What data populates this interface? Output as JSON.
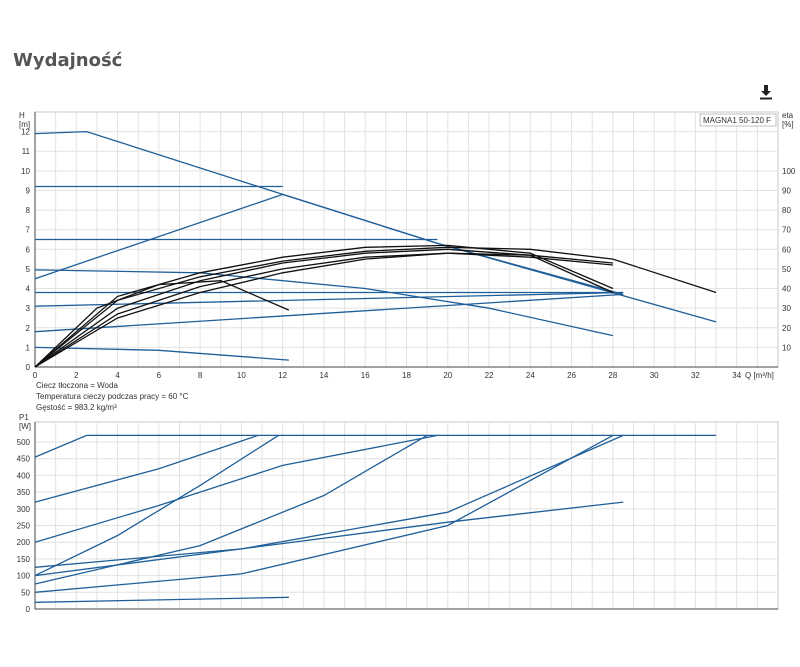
{
  "page": {
    "title": "Wydajność",
    "download_icon": "download-icon"
  },
  "chart_data": [
    {
      "type": "line",
      "model_label": "MAGNA1 50-120 F",
      "y_axis_label": [
        "H",
        "[m]"
      ],
      "y2_axis_label": [
        "eta",
        "[%]"
      ],
      "x_axis_label": "Q [m³/h]",
      "xlim": [
        0,
        36
      ],
      "ylim": [
        0,
        13
      ],
      "y2lim": [
        0,
        130
      ],
      "x_ticks": [
        0,
        2,
        4,
        6,
        8,
        10,
        12,
        14,
        16,
        18,
        20,
        22,
        24,
        26,
        28,
        30,
        32,
        34
      ],
      "y_ticks": [
        0,
        1,
        2,
        3,
        4,
        5,
        6,
        7,
        8,
        9,
        10,
        11,
        12
      ],
      "y2_ticks": [
        10,
        20,
        30,
        40,
        50,
        60,
        70,
        80,
        90,
        100
      ],
      "grid": true,
      "notes": [
        "Ciecz tłoczona = Woda",
        "Temperatura cieczy podczas pracy = 60 °C",
        "Gęstość = 983.2 kg/m³"
      ],
      "series": [
        {
          "color": "#1f5f99",
          "x": [
            0,
            2.5,
            12,
            19.5,
            28.5
          ],
          "y": [
            11.9,
            12.0,
            8.8,
            6.3,
            3.7
          ]
        },
        {
          "color": "#1f5f99",
          "x": [
            0,
            12
          ],
          "y": [
            9.2,
            9.2
          ]
        },
        {
          "color": "#1f5f99",
          "x": [
            0,
            12
          ],
          "y": [
            4.5,
            8.8
          ]
        },
        {
          "color": "#1f5f99",
          "x": [
            12,
            19.5,
            33
          ],
          "y": [
            8.8,
            6.3,
            2.3
          ]
        },
        {
          "color": "#1f5f99",
          "x": [
            0,
            19.5
          ],
          "y": [
            6.5,
            6.5
          ]
        },
        {
          "color": "#1f5f99",
          "x": [
            0,
            8,
            16,
            22,
            28
          ],
          "y": [
            4.95,
            4.8,
            4.0,
            3.0,
            1.6
          ]
        },
        {
          "color": "#1f5f99",
          "x": [
            0,
            28.5
          ],
          "y": [
            3.8,
            3.8
          ]
        },
        {
          "color": "#1f5f99",
          "x": [
            0,
            28.5
          ],
          "y": [
            3.1,
            3.8
          ]
        },
        {
          "color": "#1f5f99",
          "x": [
            0,
            28.5
          ],
          "y": [
            1.8,
            3.7
          ]
        },
        {
          "color": "#1f5f99",
          "x": [
            0,
            6,
            12.3
          ],
          "y": [
            1.0,
            0.85,
            0.35
          ]
        },
        {
          "color": "#111111",
          "x": [
            0,
            4,
            8,
            12,
            16,
            20,
            24,
            28,
            33
          ],
          "y": [
            0,
            34,
            46,
            54,
            59,
            61,
            60,
            55,
            38
          ]
        },
        {
          "color": "#111111",
          "x": [
            0,
            4,
            8,
            12,
            16,
            20,
            24,
            28
          ],
          "y": [
            0,
            36,
            48,
            56,
            61,
            62,
            58,
            40
          ]
        },
        {
          "color": "#111111",
          "x": [
            0,
            4,
            8,
            12,
            16,
            20,
            24,
            28
          ],
          "y": [
            0,
            30,
            44,
            53,
            58,
            60,
            57,
            38
          ]
        },
        {
          "color": "#111111",
          "x": [
            0,
            4,
            8,
            12,
            16,
            20,
            24,
            28
          ],
          "y": [
            0,
            27,
            41,
            50,
            56,
            58,
            56,
            52
          ]
        },
        {
          "color": "#111111",
          "x": [
            0,
            4,
            8,
            12,
            16,
            20,
            24,
            28
          ],
          "y": [
            0,
            25,
            38,
            48,
            55,
            58,
            57,
            53
          ]
        },
        {
          "color": "#111111",
          "x": [
            0,
            3,
            6,
            9,
            12.3
          ],
          "y": [
            0,
            30,
            42,
            44,
            29
          ]
        }
      ]
    },
    {
      "type": "line",
      "y_axis_label": [
        "P1",
        "[W]"
      ],
      "xlim": [
        0,
        36
      ],
      "ylim": [
        0,
        560
      ],
      "y_ticks": [
        0,
        50,
        100,
        150,
        200,
        250,
        300,
        350,
        400,
        450,
        500
      ],
      "grid": true,
      "series": [
        {
          "color": "#1f5f99",
          "x": [
            0,
            2.5,
            33
          ],
          "y": [
            455,
            520,
            520
          ]
        },
        {
          "color": "#1f5f99",
          "x": [
            0,
            6,
            10.8
          ],
          "y": [
            320,
            420,
            520
          ]
        },
        {
          "color": "#1f5f99",
          "x": [
            0,
            6,
            12,
            19.5
          ],
          "y": [
            200,
            310,
            430,
            520
          ]
        },
        {
          "color": "#1f5f99",
          "x": [
            0,
            4,
            8,
            11.8
          ],
          "y": [
            100,
            220,
            370,
            520
          ]
        },
        {
          "color": "#1f5f99",
          "x": [
            0,
            10,
            20,
            28.5
          ],
          "y": [
            100,
            180,
            260,
            320
          ]
        },
        {
          "color": "#1f5f99",
          "x": [
            0,
            8,
            14,
            19
          ],
          "y": [
            75,
            190,
            340,
            520
          ]
        },
        {
          "color": "#1f5f99",
          "x": [
            0,
            10,
            20,
            28.5
          ],
          "y": [
            125,
            180,
            290,
            520
          ]
        },
        {
          "color": "#1f5f99",
          "x": [
            0,
            10,
            20,
            28
          ],
          "y": [
            50,
            105,
            250,
            520
          ]
        },
        {
          "color": "#1f5f99",
          "x": [
            0,
            12.3
          ],
          "y": [
            20,
            35
          ]
        }
      ]
    }
  ]
}
